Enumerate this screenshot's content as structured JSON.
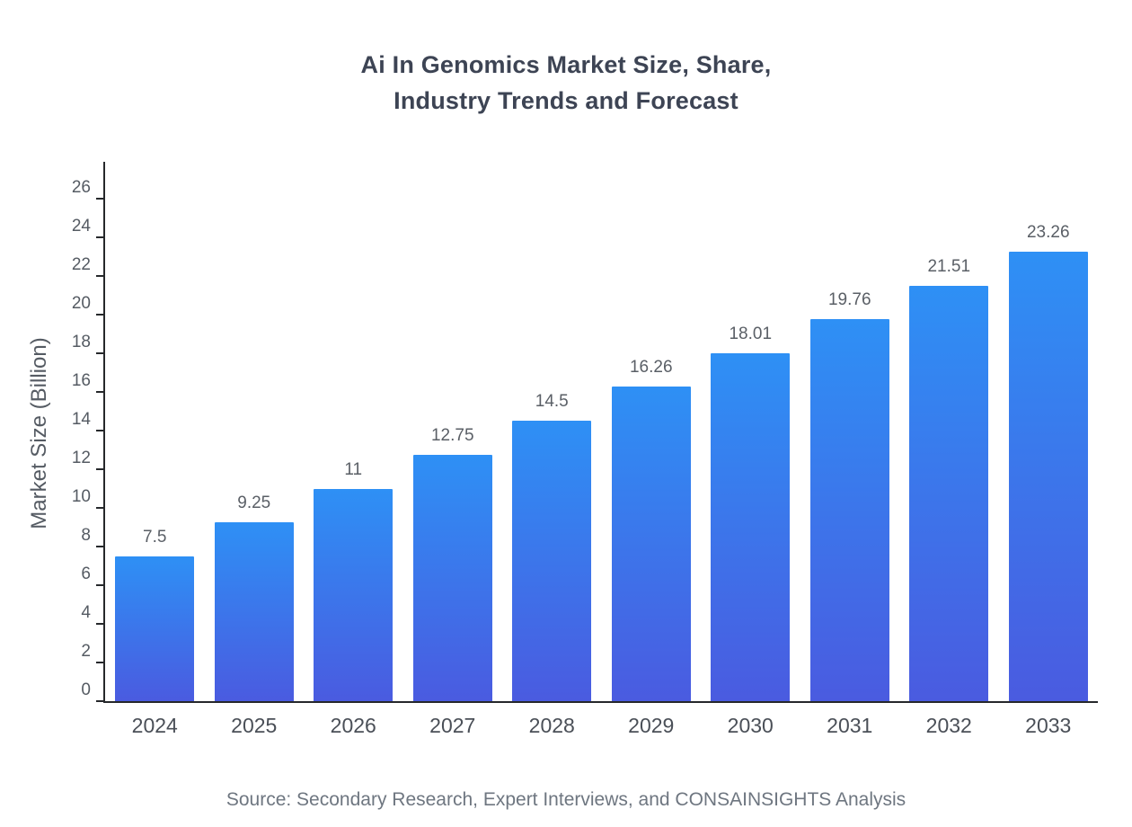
{
  "chart_data": {
    "type": "bar",
    "title": "Ai In Genomics Market Size, Share,\nIndustry Trends and Forecast",
    "xlabel": "",
    "ylabel": "Market Size (Billion)",
    "categories": [
      "2024",
      "2025",
      "2026",
      "2027",
      "2028",
      "2029",
      "2030",
      "2031",
      "2032",
      "2033"
    ],
    "values": [
      7.5,
      9.25,
      11,
      12.75,
      14.5,
      16.26,
      18.01,
      19.76,
      21.51,
      23.26
    ],
    "value_labels": [
      "7.5",
      "9.25",
      "11",
      "12.75",
      "14.5",
      "16.26",
      "18.01",
      "19.76",
      "21.51",
      "23.26"
    ],
    "ylim": [
      0,
      26
    ],
    "ytick_step": 2,
    "grid": false,
    "legend": "none",
    "source": "Source: Secondary Research, Expert Interviews, and CONSAINSIGHTS Analysis",
    "colors": {
      "bar_gradient_top": "#2E90F5",
      "bar_gradient_bottom": "#4A5BE0",
      "title": "#3D4454",
      "axis": "#26282B",
      "tick_label": "#555B63",
      "value_label": "#5A5F66",
      "x_label": "#4A4F57",
      "source_text": "#6E7680"
    }
  }
}
